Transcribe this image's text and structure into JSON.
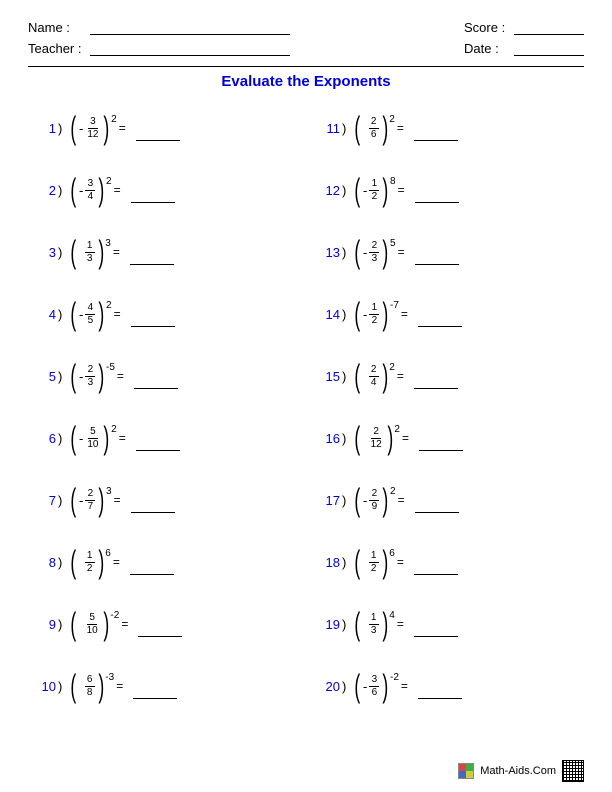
{
  "header": {
    "name_label": "Name :",
    "teacher_label": "Teacher :",
    "score_label": "Score :",
    "date_label": "Date :"
  },
  "title": "Evaluate the Exponents",
  "problems_left": [
    {
      "n": "1",
      "neg": true,
      "num": "3",
      "den": "12",
      "exp": "2"
    },
    {
      "n": "2",
      "neg": true,
      "num": "3",
      "den": "4",
      "exp": "2"
    },
    {
      "n": "3",
      "neg": false,
      "num": "1",
      "den": "3",
      "exp": "3"
    },
    {
      "n": "4",
      "neg": true,
      "num": "4",
      "den": "5",
      "exp": "2"
    },
    {
      "n": "5",
      "neg": true,
      "num": "2",
      "den": "3",
      "exp": "-5"
    },
    {
      "n": "6",
      "neg": true,
      "num": "5",
      "den": "10",
      "exp": "2"
    },
    {
      "n": "7",
      "neg": true,
      "num": "2",
      "den": "7",
      "exp": "3"
    },
    {
      "n": "8",
      "neg": false,
      "num": "1",
      "den": "2",
      "exp": "6"
    },
    {
      "n": "9",
      "neg": false,
      "num": "5",
      "den": "10",
      "exp": "-2"
    },
    {
      "n": "10",
      "neg": false,
      "num": "6",
      "den": "8",
      "exp": "-3"
    }
  ],
  "problems_right": [
    {
      "n": "11",
      "neg": false,
      "num": "2",
      "den": "6",
      "exp": "2"
    },
    {
      "n": "12",
      "neg": true,
      "num": "1",
      "den": "2",
      "exp": "8"
    },
    {
      "n": "13",
      "neg": true,
      "num": "2",
      "den": "3",
      "exp": "5"
    },
    {
      "n": "14",
      "neg": true,
      "num": "1",
      "den": "2",
      "exp": "-7"
    },
    {
      "n": "15",
      "neg": false,
      "num": "2",
      "den": "4",
      "exp": "2"
    },
    {
      "n": "16",
      "neg": false,
      "num": "2",
      "den": "12",
      "exp": "2"
    },
    {
      "n": "17",
      "neg": true,
      "num": "2",
      "den": "9",
      "exp": "2"
    },
    {
      "n": "18",
      "neg": false,
      "num": "1",
      "den": "2",
      "exp": "6"
    },
    {
      "n": "19",
      "neg": false,
      "num": "1",
      "den": "3",
      "exp": "4"
    },
    {
      "n": "20",
      "neg": true,
      "num": "3",
      "den": "6",
      "exp": "-2"
    }
  ],
  "footer": {
    "site": "Math-Aids.Com"
  }
}
